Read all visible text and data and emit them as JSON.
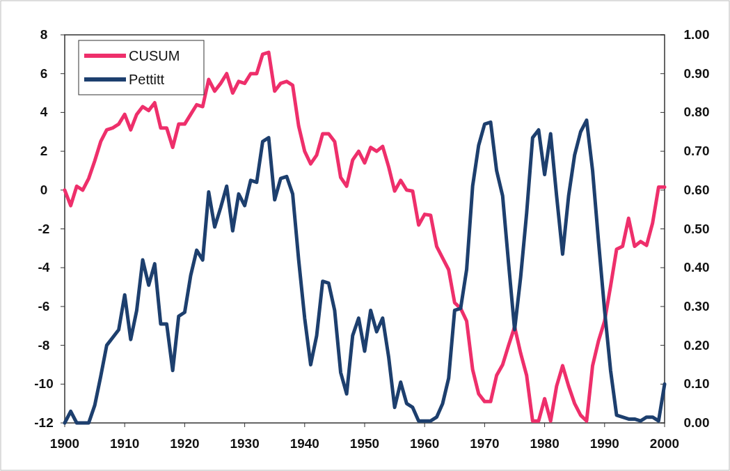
{
  "chart_data": {
    "type": "line",
    "x": [
      1900,
      1901,
      1902,
      1903,
      1904,
      1905,
      1906,
      1907,
      1908,
      1909,
      1910,
      1911,
      1912,
      1913,
      1914,
      1915,
      1916,
      1917,
      1918,
      1919,
      1920,
      1921,
      1922,
      1923,
      1924,
      1925,
      1926,
      1927,
      1928,
      1929,
      1930,
      1931,
      1932,
      1933,
      1934,
      1935,
      1936,
      1937,
      1938,
      1939,
      1940,
      1941,
      1942,
      1943,
      1944,
      1945,
      1946,
      1947,
      1948,
      1949,
      1950,
      1951,
      1952,
      1953,
      1954,
      1955,
      1956,
      1957,
      1958,
      1959,
      1960,
      1961,
      1962,
      1963,
      1964,
      1965,
      1966,
      1967,
      1968,
      1969,
      1970,
      1971,
      1972,
      1973,
      1974,
      1975,
      1976,
      1977,
      1978,
      1979,
      1980,
      1981,
      1982,
      1983,
      1984,
      1985,
      1986,
      1987,
      1988,
      1989,
      1990,
      1991,
      1992,
      1993,
      1994,
      1995,
      1996,
      1997,
      1998,
      1999,
      2000
    ],
    "series": [
      {
        "name": "CUSUM",
        "color": "#ee2f6b",
        "values": [
          0,
          -0.8,
          0.2,
          0,
          0.6,
          1.5,
          2.5,
          3.1,
          3.2,
          3.4,
          3.9,
          3.1,
          3.9,
          4.3,
          4.1,
          4.5,
          3.2,
          3.2,
          2.2,
          3.4,
          3.4,
          3.9,
          4.4,
          4.3,
          5.7,
          5.1,
          5.5,
          6.0,
          5.0,
          5.6,
          5.5,
          6.0,
          6.0,
          7.0,
          7.1,
          5.1,
          5.5,
          5.6,
          5.4,
          3.3,
          2.0,
          1.35,
          1.8,
          2.9,
          2.9,
          2.5,
          0.65,
          0.2,
          1.55,
          2.0,
          1.4,
          2.2,
          2.0,
          2.25,
          1.2,
          -0.05,
          0.5,
          0,
          -0.05,
          -1.8,
          -1.25,
          -1.3,
          -2.9,
          -3.5,
          -4.1,
          -5.8,
          -6.1,
          -6.75,
          -9.25,
          -10.5,
          -10.9,
          -10.9,
          -9.55,
          -9.0,
          -8.0,
          -7.05,
          -8.4,
          -9.55,
          -11.9,
          -11.9,
          -10.75,
          -11.9,
          -10.1,
          -9.05,
          -10.1,
          -11.0,
          -11.6,
          -11.9,
          -9.05,
          -7.75,
          -6.75,
          -4.95,
          -3.05,
          -2.9,
          -1.45,
          -2.9,
          -2.65,
          -2.85,
          -1.7,
          0.15,
          0.15
        ]
      },
      {
        "name": "Pettitt",
        "color": "#1d3f6e",
        "axis": "y2",
        "values": [
          0,
          0.03,
          0,
          0,
          0,
          0.045,
          0.12,
          0.2,
          0.22,
          0.24,
          0.33,
          0.215,
          0.29,
          0.42,
          0.355,
          0.41,
          0.255,
          0.255,
          0.135,
          0.275,
          0.285,
          0.38,
          0.445,
          0.42,
          0.595,
          0.505,
          0.555,
          0.61,
          0.495,
          0.59,
          0.56,
          0.625,
          0.62,
          0.725,
          0.735,
          0.575,
          0.63,
          0.635,
          0.59,
          0.42,
          0.27,
          0.15,
          0.225,
          0.365,
          0.36,
          0.29,
          0.13,
          0.075,
          0.225,
          0.27,
          0.185,
          0.29,
          0.235,
          0.27,
          0.17,
          0.04,
          0.105,
          0.05,
          0.04,
          0.005,
          0.005,
          0.005,
          0.015,
          0.05,
          0.115,
          0.29,
          0.295,
          0.395,
          0.61,
          0.715,
          0.77,
          0.775,
          0.65,
          0.585,
          0.41,
          0.24,
          0.375,
          0.54,
          0.735,
          0.755,
          0.64,
          0.745,
          0.585,
          0.435,
          0.585,
          0.69,
          0.75,
          0.78,
          0.65,
          0.465,
          0.29,
          0.135,
          0.02,
          0.015,
          0.01,
          0.01,
          0.005,
          0.015,
          0.015,
          0.005,
          0.1
        ]
      }
    ],
    "xlim": [
      1900,
      2000
    ],
    "xticks": [
      1900,
      1910,
      1920,
      1930,
      1940,
      1950,
      1960,
      1970,
      1980,
      1990,
      2000
    ],
    "ylim": [
      -12,
      8
    ],
    "yticks": [
      -12,
      -10,
      -8,
      -6,
      -4,
      -2,
      0,
      2,
      4,
      6,
      8
    ],
    "y2lim": [
      0,
      1
    ],
    "y2ticks": [
      {
        "value": 0,
        "label": "0.00"
      },
      {
        "value": 0.1,
        "label": "0.10"
      },
      {
        "value": 0.2,
        "label": "0.20"
      },
      {
        "value": 0.3,
        "label": "0.30"
      },
      {
        "value": 0.4,
        "label": "0.40"
      },
      {
        "value": 0.5,
        "label": "0.50"
      },
      {
        "value": 0.6,
        "label": "0.60"
      },
      {
        "value": 0.7,
        "label": "0.70"
      },
      {
        "value": 0.8,
        "label": "0.80"
      },
      {
        "value": 0.9,
        "label": "0.90"
      },
      {
        "value": 1,
        "label": "1.00"
      }
    ],
    "legend": "top left",
    "grid": false,
    "marker": "none",
    "line_style": "solid"
  }
}
